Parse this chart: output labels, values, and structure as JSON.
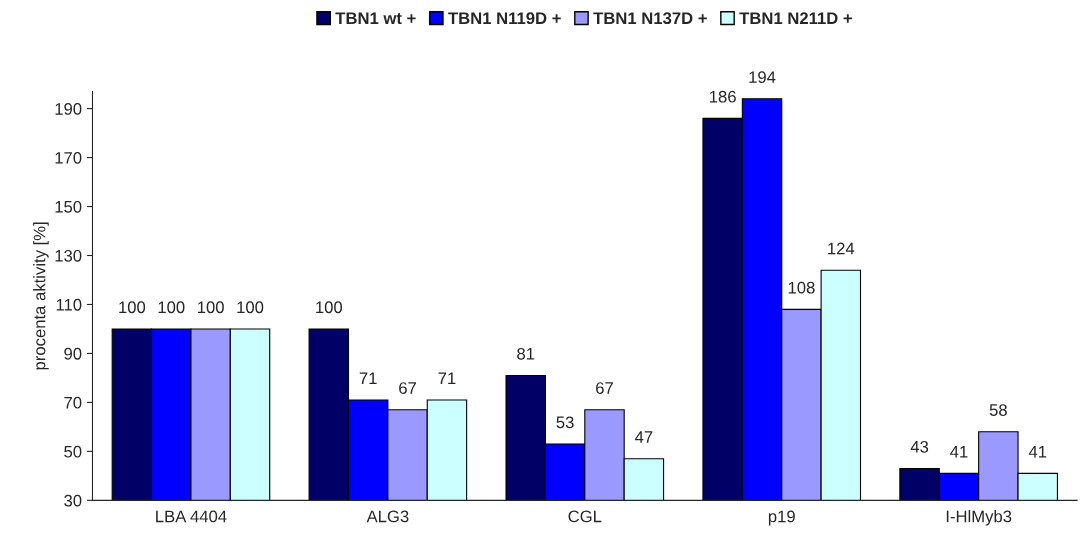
{
  "chart_data": {
    "type": "bar",
    "categories": [
      "LBA 4404",
      "ALG3",
      "CGL",
      "p19",
      "I-HlMyb3"
    ],
    "series": [
      {
        "name": "TBN1 wt +",
        "color": "#000066",
        "values": [
          100,
          100,
          81,
          186,
          43
        ]
      },
      {
        "name": "TBN1 N119D +",
        "color": "#0000ff",
        "values": [
          100,
          71,
          53,
          194,
          41
        ]
      },
      {
        "name": "TBN1 N137D +",
        "color": "#9999ff",
        "values": [
          100,
          67,
          67,
          108,
          58
        ]
      },
      {
        "name": "TBN1 N211D +",
        "color": "#ccffff",
        "values": [
          100,
          71,
          47,
          124,
          41
        ]
      }
    ],
    "ylabel": "procenta aktivity [%]",
    "ylim": [
      30,
      197
    ],
    "yticks": [
      30,
      50,
      70,
      90,
      110,
      130,
      150,
      170,
      190
    ],
    "data_labels": true,
    "grid": false,
    "legend": "top"
  }
}
